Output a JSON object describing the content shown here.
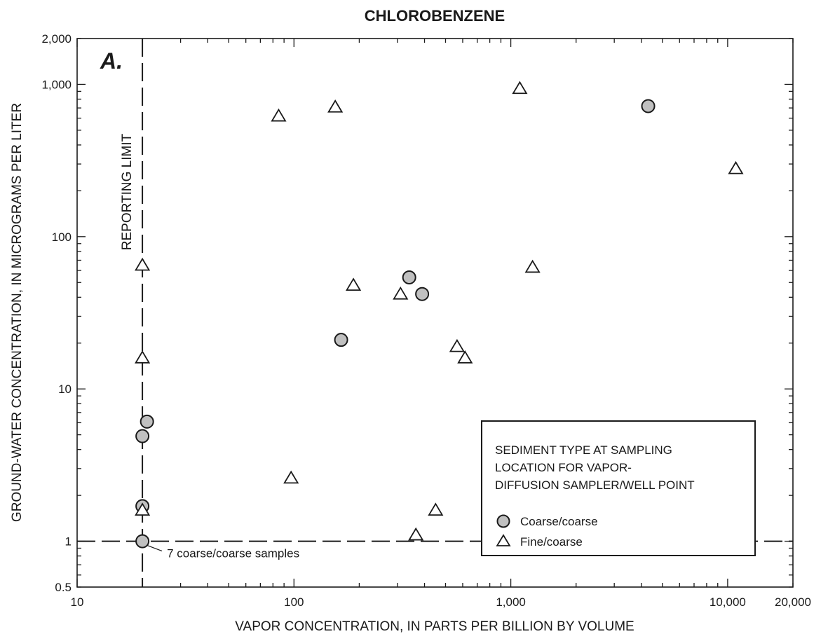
{
  "chart_data": {
    "type": "scatter",
    "title": "CHLOROBENZENE",
    "panel_label": "A.",
    "xlabel": "VAPOR CONCENTRATION, IN PARTS PER BILLION BY VOLUME",
    "ylabel": "GROUND-WATER CONCENTRATION, IN MICROGRAMS PER LITER",
    "x_scale": "log",
    "y_scale": "log",
    "xlim": [
      10,
      20000
    ],
    "ylim": [
      0.5,
      2000
    ],
    "x_ticks": [
      {
        "value": 10,
        "label": "10"
      },
      {
        "value": 100,
        "label": "100"
      },
      {
        "value": 1000,
        "label": "1,000"
      },
      {
        "value": 10000,
        "label": "10,000"
      },
      {
        "value": 20000,
        "label": "20,000"
      }
    ],
    "y_ticks": [
      {
        "value": 0.5,
        "label": "0.5"
      },
      {
        "value": 1,
        "label": "1"
      },
      {
        "value": 10,
        "label": "10"
      },
      {
        "value": 100,
        "label": "100"
      },
      {
        "value": 1000,
        "label": "1,000"
      },
      {
        "value": 2000,
        "label": "2,000"
      }
    ],
    "grid": false,
    "legend": {
      "placement": "bottom-right",
      "title_lines": [
        "SEDIMENT TYPE AT SAMPLING",
        "LOCATION FOR VAPOR-",
        "DIFFUSION SAMPLER/WELL POINT"
      ]
    },
    "series": [
      {
        "name": "Coarse/coarse",
        "marker": "circle",
        "color": "#c0c0c0",
        "points": [
          {
            "x": 20,
            "y": 1
          },
          {
            "x": 20,
            "y": 1.7
          },
          {
            "x": 20,
            "y": 4.9
          },
          {
            "x": 21,
            "y": 6.1
          },
          {
            "x": 165,
            "y": 21
          },
          {
            "x": 340,
            "y": 54
          },
          {
            "x": 390,
            "y": 42
          },
          {
            "x": 4300,
            "y": 720
          }
        ]
      },
      {
        "name": "Fine/coarse",
        "marker": "triangle",
        "color": "#ffffff",
        "points": [
          {
            "x": 20,
            "y": 1.6
          },
          {
            "x": 20,
            "y": 16
          },
          {
            "x": 20,
            "y": 65
          },
          {
            "x": 85,
            "y": 620
          },
          {
            "x": 97,
            "y": 2.6
          },
          {
            "x": 155,
            "y": 710
          },
          {
            "x": 188,
            "y": 48
          },
          {
            "x": 310,
            "y": 42
          },
          {
            "x": 365,
            "y": 1.1
          },
          {
            "x": 450,
            "y": 1.6
          },
          {
            "x": 565,
            "y": 19
          },
          {
            "x": 615,
            "y": 16
          },
          {
            "x": 1100,
            "y": 940
          },
          {
            "x": 1260,
            "y": 63
          },
          {
            "x": 10900,
            "y": 280
          }
        ]
      }
    ],
    "reference_lines": [
      {
        "orientation": "vertical",
        "value": 20,
        "label": "REPORTING LIMIT",
        "style": "dashed"
      },
      {
        "orientation": "horizontal",
        "value": 1,
        "label": "",
        "style": "dashed"
      }
    ],
    "annotations": [
      {
        "text": "7 coarse/coarse samples",
        "x": 20,
        "y": 1
      }
    ]
  },
  "colors": {
    "ink": "#1a1a1a",
    "coarse_fill": "#c0c0c0",
    "fine_fill": "#ffffff",
    "background": "#ffffff"
  }
}
